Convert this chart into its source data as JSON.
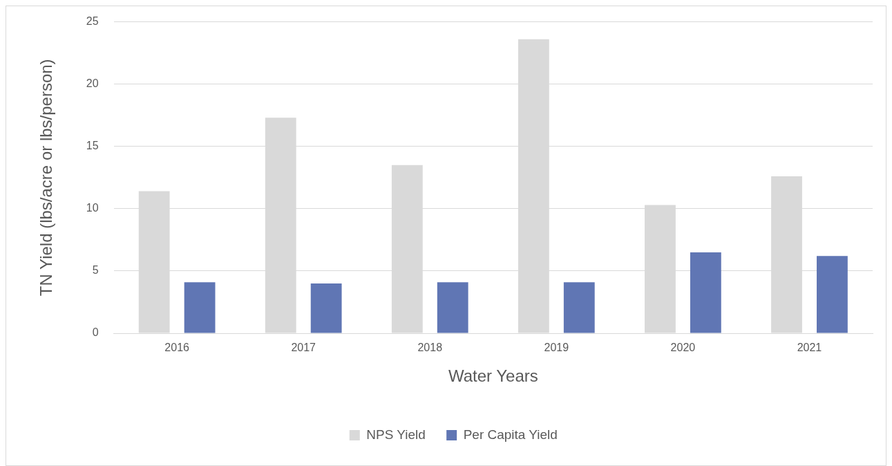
{
  "chart_data": {
    "type": "bar",
    "xlabel": "Water Years",
    "ylabel": "TN Yield (lbs/acre or lbs/person)",
    "categories": [
      "2016",
      "2017",
      "2018",
      "2019",
      "2020",
      "2021"
    ],
    "series": [
      {
        "name": "NPS Yield",
        "color": "#d9d9d9",
        "values": [
          11.4,
          17.3,
          13.5,
          23.6,
          10.3,
          12.6
        ]
      },
      {
        "name": "Per Capita Yield",
        "color": "#6076b4",
        "values": [
          4.1,
          4.0,
          4.1,
          4.1,
          6.5,
          6.2
        ]
      }
    ],
    "ylim": [
      0,
      25
    ],
    "yticks": [
      0,
      5,
      10,
      15,
      20,
      25
    ],
    "grid": "y",
    "legend": "bottom"
  }
}
